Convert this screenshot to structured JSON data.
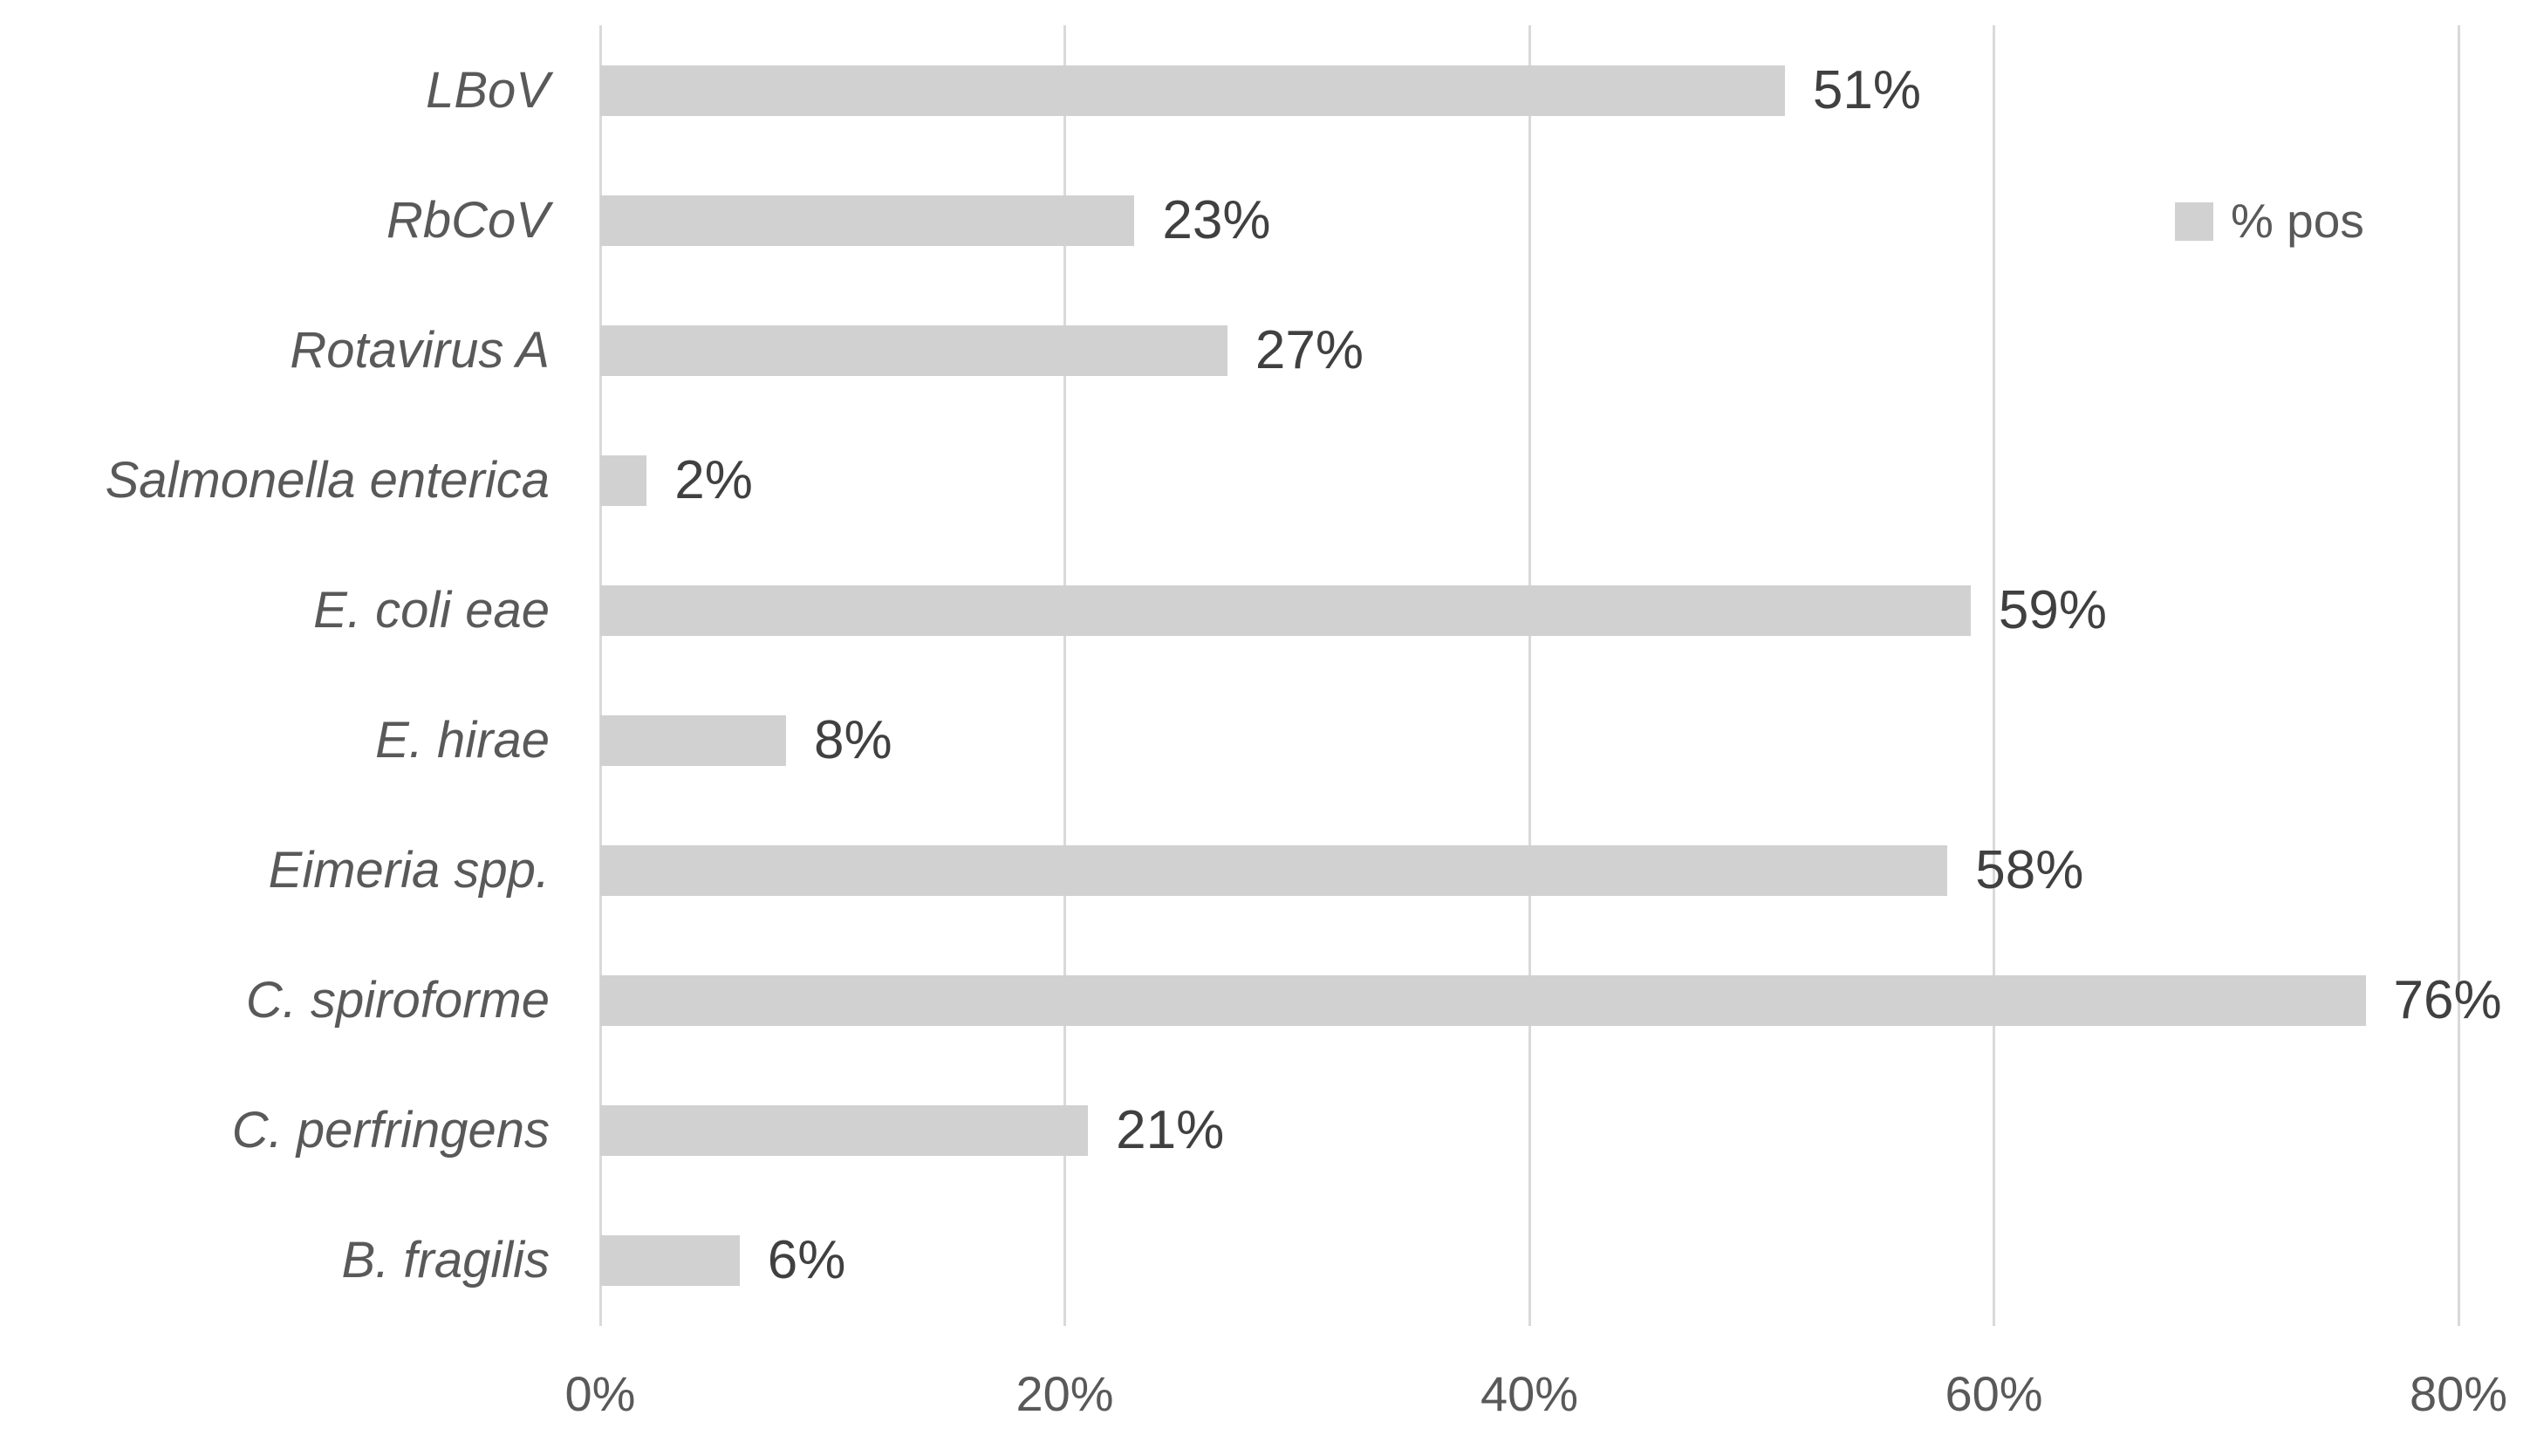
{
  "chart_data": {
    "type": "bar",
    "orientation": "horizontal",
    "title": "",
    "categories": [
      "LBoV",
      "RbCoV",
      "Rotavirus A",
      "Salmonella enterica",
      "E. coli eae",
      "E. hirae",
      "Eimeria spp.",
      "C. spiroforme",
      "C. perfringens",
      "B. fragilis"
    ],
    "series": [
      {
        "name": "% pos",
        "values": [
          51,
          23,
          27,
          2,
          59,
          8,
          58,
          76,
          21,
          6
        ],
        "value_labels": [
          "51%",
          "23%",
          "27%",
          "2%",
          "59%",
          "8%",
          "58%",
          "76%",
          "21%",
          "6%"
        ]
      }
    ],
    "xlabel": "",
    "ylabel": "",
    "xlim": [
      0,
      80
    ],
    "x_ticks": [
      {
        "value": 0,
        "label": "0%"
      },
      {
        "value": 20,
        "label": "20%"
      },
      {
        "value": 40,
        "label": "40%"
      },
      {
        "value": 60,
        "label": "60%"
      },
      {
        "value": 80,
        "label": "80%"
      }
    ],
    "grid": "vertical-on",
    "legend": {
      "label": "% pos",
      "position": "right-top"
    },
    "colors": {
      "bar": "#d1d1d1",
      "gridline": "#d9d9d9",
      "category_label": "#595959",
      "value_label": "#404040",
      "axis_tick_label": "#595959",
      "legend_text": "#595959",
      "background": "#ffffff"
    }
  }
}
